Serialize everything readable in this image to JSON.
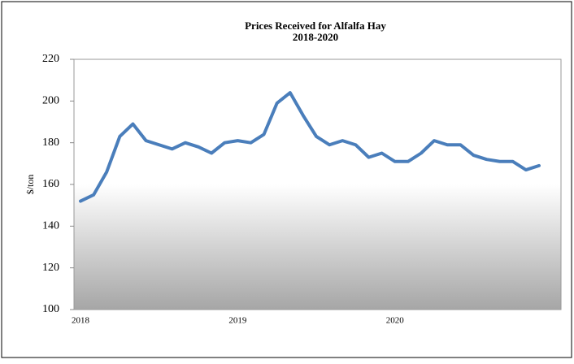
{
  "chart_data": {
    "type": "line",
    "title": "Prices Received for Alfalfa Hay",
    "subtitle": "2018-2020",
    "y_label": "$/ton",
    "categories": [
      "2018",
      null,
      null,
      null,
      null,
      null,
      null,
      null,
      null,
      null,
      null,
      null,
      "2019",
      null,
      null,
      null,
      null,
      null,
      null,
      null,
      null,
      null,
      null,
      null,
      "2020",
      null,
      null,
      null,
      null,
      null,
      null,
      null,
      null,
      null,
      null,
      null
    ],
    "series": [
      {
        "name": "Alfalfa Hay",
        "color": "#4a7ebb",
        "values": [
          152,
          155,
          166,
          183,
          189,
          181,
          179,
          177,
          180,
          178,
          175,
          180,
          181,
          180,
          184,
          199,
          204,
          193,
          183,
          179,
          181,
          179,
          173,
          175,
          171,
          171,
          175,
          181,
          179,
          179,
          174,
          172,
          171,
          171,
          167,
          169
        ]
      }
    ],
    "ylim": [
      100,
      220
    ],
    "yticks": [
      100,
      120,
      140,
      160,
      180,
      200,
      220
    ]
  }
}
